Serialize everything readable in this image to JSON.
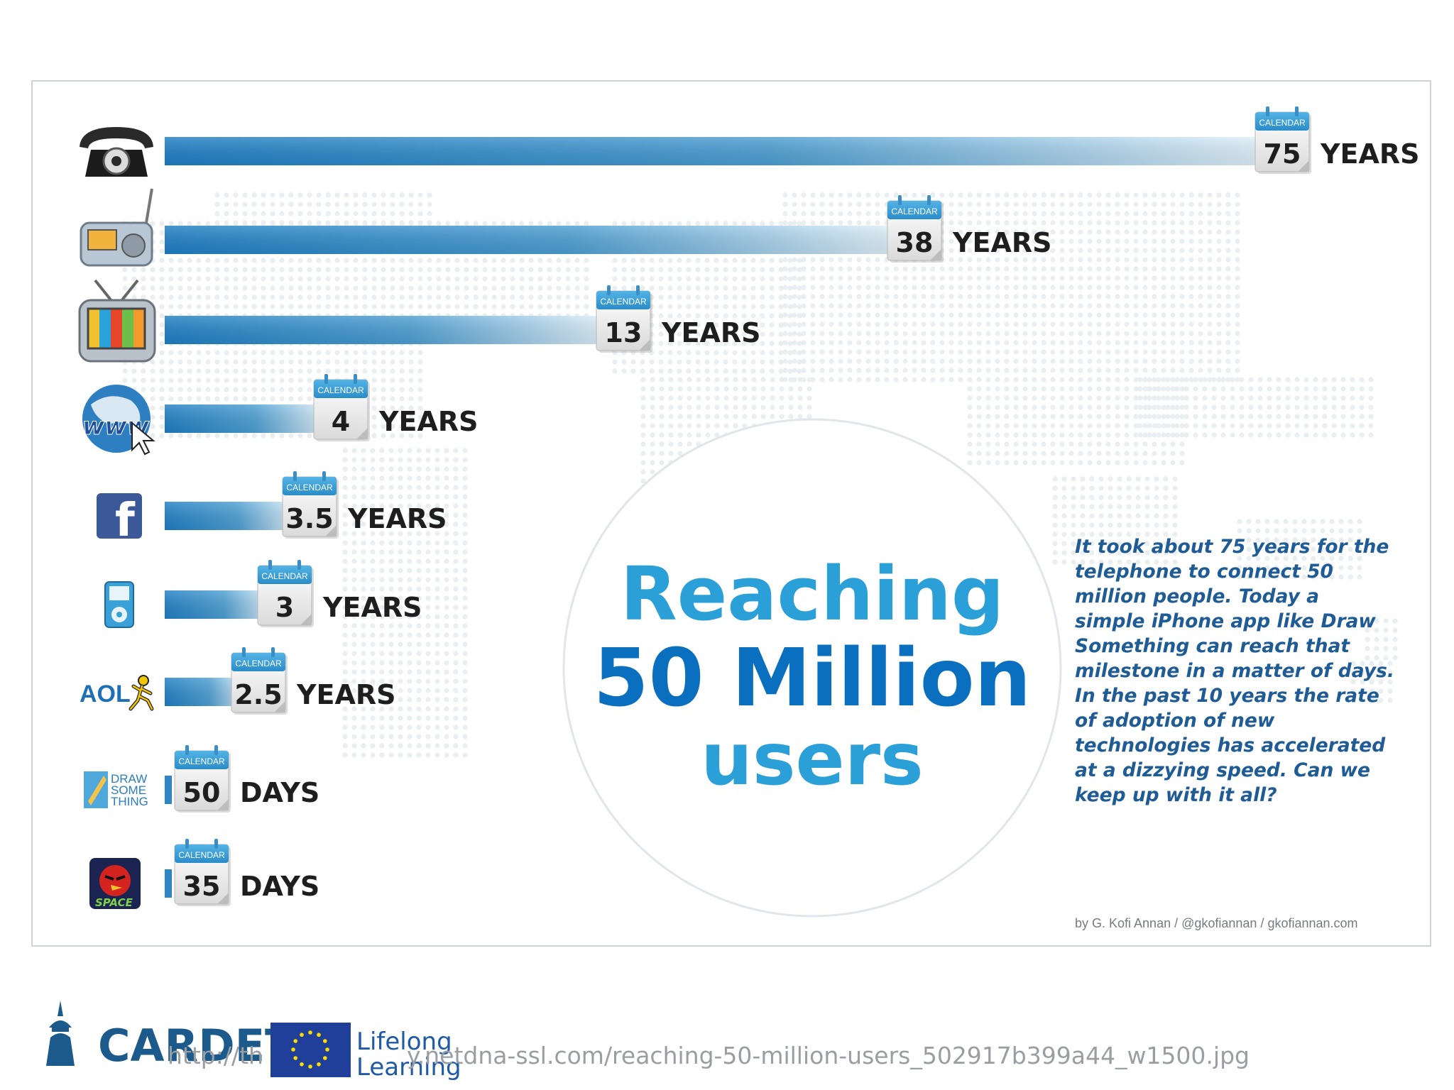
{
  "chart_data": {
    "type": "bar",
    "orientation": "horizontal",
    "title": "Reaching 50 Million users",
    "categories": [
      "Telephone",
      "Radio",
      "TV",
      "Internet",
      "Facebook",
      "iPod",
      "AOL",
      "Draw Something",
      "Angry Birds Space"
    ],
    "icons": [
      "telephone-icon",
      "radio-icon",
      "tv-icon",
      "www-globe-icon",
      "facebook-icon",
      "ipod-icon",
      "aol-icon",
      "draw-something-icon",
      "angry-birds-space-icon"
    ],
    "values": [
      75,
      38,
      13,
      4,
      3.5,
      3,
      2.5,
      50,
      35
    ],
    "units": [
      "YEARS",
      "YEARS",
      "YEARS",
      "YEARS",
      "YEARS",
      "YEARS",
      "YEARS",
      "DAYS",
      "DAYS"
    ],
    "value_labels": [
      "75",
      "38",
      "13",
      "4",
      "3.5",
      "3",
      "2.5",
      "50",
      "35"
    ],
    "calendar_label": "CALENDAR",
    "xlabel": "",
    "ylabel": "",
    "grid": false,
    "legend": "none",
    "bar_color": "#1a7cc0"
  },
  "headline": {
    "line1": "Reaching",
    "line2": "50 Million",
    "line3": "users",
    "light_blue": "#2a9fd8",
    "dark_blue": "#0a6fbf"
  },
  "blurb": "It took about 75 years for the telephone to connect 50 million people. Today a simple iPhone app like Draw Something can reach that milestone in a matter of days. In the past 10 years the rate of adoption of new technologies has accelerated at a dizzying speed. Can we keep up with it all?",
  "credit": "by G. Kofi Annan / @gkofiannan / gkofiannan.com",
  "footer": {
    "url_text": "http://th",
    "url_text_2": "y.netdna-ssl.com/reaching-50-million-users_502917b399a44_w1500.jpg",
    "cardet_logo": "CARDET",
    "lifelong_line1": "Lifelong",
    "lifelong_line2": "Learning",
    "eu_flag_icon": "eu-flag-icon"
  },
  "aol_label": "AOL",
  "draw_something_label": [
    "DRAW",
    "SOME",
    "THING"
  ]
}
